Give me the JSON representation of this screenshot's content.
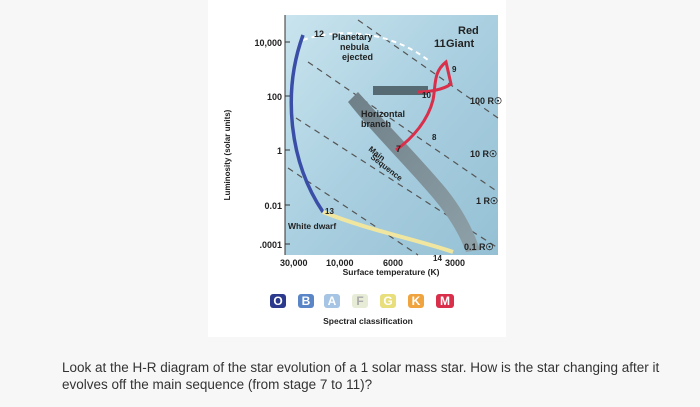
{
  "figure": {
    "ylabel": "Luminosity (solar units)",
    "y_ticks": [
      "10,000",
      "100",
      "1",
      "0.01",
      ".0001"
    ],
    "x_ticks": [
      "30,000",
      "10,000",
      "6000",
      "3000"
    ],
    "xlabel": "Surface temperature (K)",
    "regions": {
      "planetary_nebula": [
        "Planetary",
        "nebula",
        "ejected"
      ],
      "red_giant": [
        "Red",
        "Giant"
      ],
      "horizontal_branch": [
        "Horizontal",
        "branch"
      ],
      "main_sequence": [
        "Main",
        "Sequence"
      ],
      "white_dwarf": "White dwarf"
    },
    "stages": [
      "7",
      "8",
      "9",
      "10",
      "11",
      "12",
      "13",
      "14"
    ],
    "radius_labels": [
      "100 R☉",
      "10 R☉",
      "1 R☉",
      "0.1 R☉"
    ],
    "spectral_classes": [
      "O",
      "B",
      "A",
      "F",
      "G",
      "K",
      "M"
    ],
    "spectral_label": "Spectral classification",
    "colors": {
      "plot_background": "#a9cfe0",
      "main_sequence_band": "#7a8c94",
      "evolution_track": "#d92f4a",
      "dashed_radius_lines": "#555555"
    }
  },
  "question": {
    "text": "Look at the H-R diagram of the star evolution of a 1 solar mass star. How is the star changing after it evolves off the main sequence (from stage 7 to 11)?"
  }
}
